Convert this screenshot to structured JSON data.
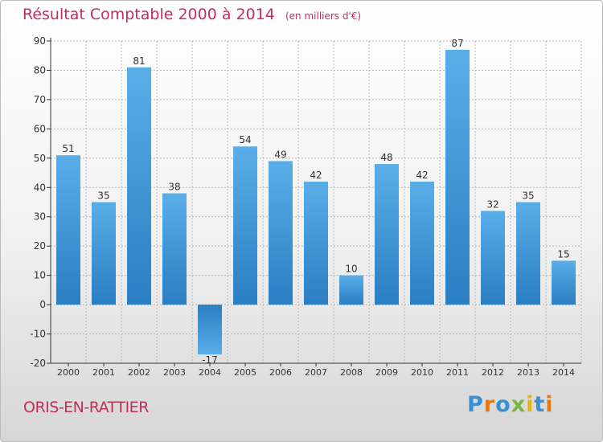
{
  "title": "Résultat Comptable 2000 à 2014",
  "unit": "(en milliers d'€)",
  "commune": "ORIS-EN-RATTIER",
  "logo": {
    "text": "Proxiti",
    "letters": [
      {
        "ch": "P",
        "color": "#3a8fd0"
      },
      {
        "ch": "r",
        "color": "#e07a1a"
      },
      {
        "ch": "o",
        "color": "#3a8fd0"
      },
      {
        "ch": "x",
        "color": "#79b540"
      },
      {
        "ch": "i",
        "color": "#e0b51a"
      },
      {
        "ch": "t",
        "color": "#3a8fd0"
      },
      {
        "ch": "i",
        "color": "#e07a1a"
      }
    ]
  },
  "colors": {
    "bar_light": "#5aaee8",
    "bar_dark": "#2a7ec2",
    "grid": "#b8b8b8",
    "axis": "#333333",
    "text": "#333333",
    "title": "#c0305a"
  },
  "chart_data": {
    "type": "bar",
    "title": "Résultat Comptable 2000 à 2014",
    "ylabel": "(en milliers d'€)",
    "xlabel": "",
    "categories": [
      "2000",
      "2001",
      "2002",
      "2003",
      "2004",
      "2005",
      "2006",
      "2007",
      "2008",
      "2009",
      "2010",
      "2011",
      "2012",
      "2013",
      "2014"
    ],
    "values": [
      51,
      35,
      81,
      38,
      -17,
      54,
      49,
      42,
      10,
      48,
      42,
      87,
      32,
      35,
      15
    ],
    "labels": [
      "51",
      "35",
      "81",
      "38",
      "-17",
      "54",
      "49",
      "42",
      "10",
      "48",
      "42",
      "87",
      "32",
      "35",
      "15"
    ],
    "ylim": [
      -20,
      90
    ],
    "yticks": [
      "-20",
      "-10",
      "0",
      "10",
      "20",
      "30",
      "40",
      "50",
      "60",
      "70",
      "80",
      "90"
    ],
    "grid": true,
    "legend": "none"
  }
}
